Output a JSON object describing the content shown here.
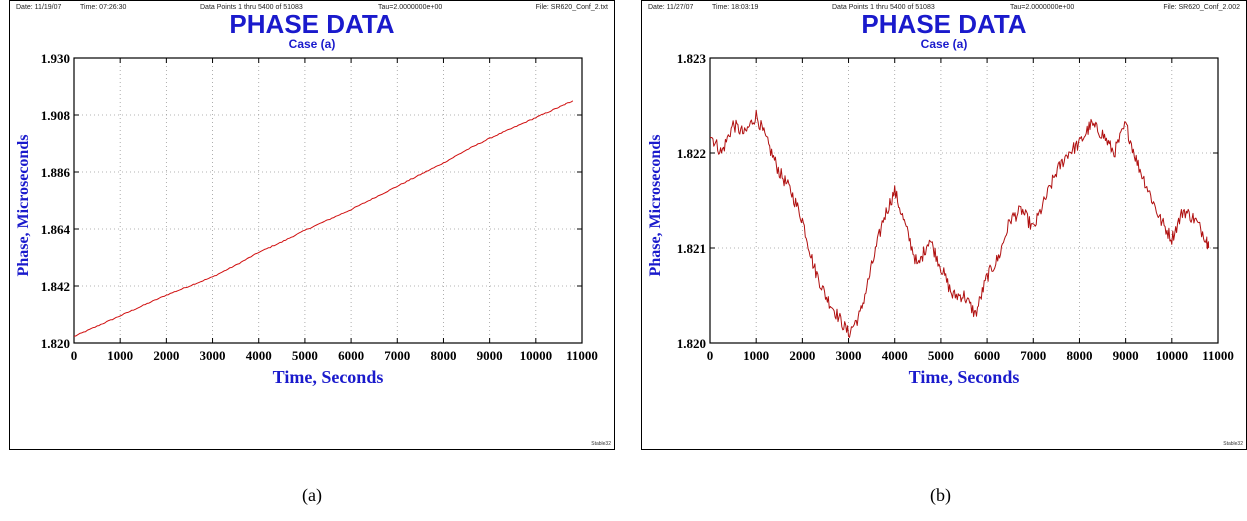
{
  "charts": [
    {
      "header": {
        "date": "Date: 11/19/07",
        "time": "Time: 07:26:30",
        "points": "Data Points 1 thru 5400 of 51083",
        "tau": "Tau=2.0000000e+00",
        "file": "File: SR620_Conf_2.txt",
        "corner": "Stable32"
      },
      "title": "PHASE DATA",
      "subtitle": "Case (a)",
      "caption": "(a)"
    },
    {
      "header": {
        "date": "Date: 11/27/07",
        "time": "Time: 18:03:19",
        "points": "Data Points 1 thru 5400 of 51083",
        "tau": "Tau=2.0000000e+00",
        "file": "File: SR620_Conf_2.002",
        "corner": "Stable32"
      },
      "title": "PHASE DATA",
      "subtitle": "Case (a)",
      "caption": "(b)"
    }
  ],
  "chart_data": [
    {
      "type": "line",
      "title": "PHASE DATA",
      "subtitle": "Case (a)",
      "xlabel": "Time, Seconds",
      "ylabel": "Phase, Microseconds",
      "xlim": [
        0,
        11000
      ],
      "ylim": [
        1.82,
        1.93
      ],
      "xticks": [
        "0",
        "1000",
        "2000",
        "3000",
        "4000",
        "5000",
        "6000",
        "7000",
        "8000",
        "9000",
        "10000",
        "11000"
      ],
      "yticks": [
        "1.820",
        "1.842",
        "1.864",
        "1.886",
        "1.908",
        "1.930"
      ],
      "grid": true,
      "line_color": "#d01010",
      "noise": 0.0002,
      "series": [
        {
          "x": [
            0,
            500,
            1000,
            1500,
            2000,
            2500,
            3000,
            3500,
            4000,
            4500,
            5000,
            5500,
            6000,
            6500,
            7000,
            7500,
            8000,
            8500,
            9000,
            9500,
            10000,
            10500,
            10800
          ],
          "y": [
            1.8225,
            1.8265,
            1.8305,
            1.8345,
            1.8385,
            1.842,
            1.8455,
            1.85,
            1.855,
            1.859,
            1.8635,
            1.8675,
            1.8715,
            1.876,
            1.8805,
            1.885,
            1.8895,
            1.8945,
            1.899,
            1.903,
            1.907,
            1.911,
            1.9135
          ]
        }
      ]
    },
    {
      "type": "line",
      "title": "PHASE DATA",
      "subtitle": "Case (a)",
      "xlabel": "Time, Seconds",
      "ylabel": "Phase, Microseconds",
      "xlim": [
        0,
        11000
      ],
      "ylim": [
        1.82,
        1.823
      ],
      "xticks": [
        "0",
        "1000",
        "2000",
        "3000",
        "4000",
        "5000",
        "6000",
        "7000",
        "8000",
        "9000",
        "10000",
        "11000"
      ],
      "yticks": [
        "1.820",
        "1.821",
        "1.822",
        "1.823"
      ],
      "grid": true,
      "line_color": "#b01010",
      "noise": 7e-05,
      "series": [
        {
          "x": [
            0,
            250,
            500,
            750,
            1000,
            1250,
            1500,
            1750,
            2000,
            2250,
            2500,
            2750,
            3000,
            3250,
            3500,
            3750,
            4000,
            4250,
            4500,
            4750,
            5000,
            5250,
            5500,
            5750,
            6000,
            6250,
            6500,
            6750,
            7000,
            7250,
            7500,
            7750,
            8000,
            8250,
            8500,
            8750,
            9000,
            9250,
            9500,
            9750,
            10000,
            10250,
            10500,
            10750,
            10800
          ],
          "y": [
            1.8222,
            1.822,
            1.8223,
            1.8222,
            1.8224,
            1.8221,
            1.8218,
            1.8216,
            1.8213,
            1.8208,
            1.8205,
            1.8203,
            1.8201,
            1.8203,
            1.8208,
            1.8213,
            1.8216,
            1.8212,
            1.8208,
            1.8211,
            1.8208,
            1.8205,
            1.8205,
            1.8203,
            1.8207,
            1.8209,
            1.8213,
            1.8214,
            1.8212,
            1.8215,
            1.8218,
            1.822,
            1.8221,
            1.8223,
            1.8222,
            1.822,
            1.8223,
            1.8219,
            1.8216,
            1.8213,
            1.8211,
            1.8214,
            1.8213,
            1.8211,
            1.821
          ]
        }
      ]
    }
  ]
}
